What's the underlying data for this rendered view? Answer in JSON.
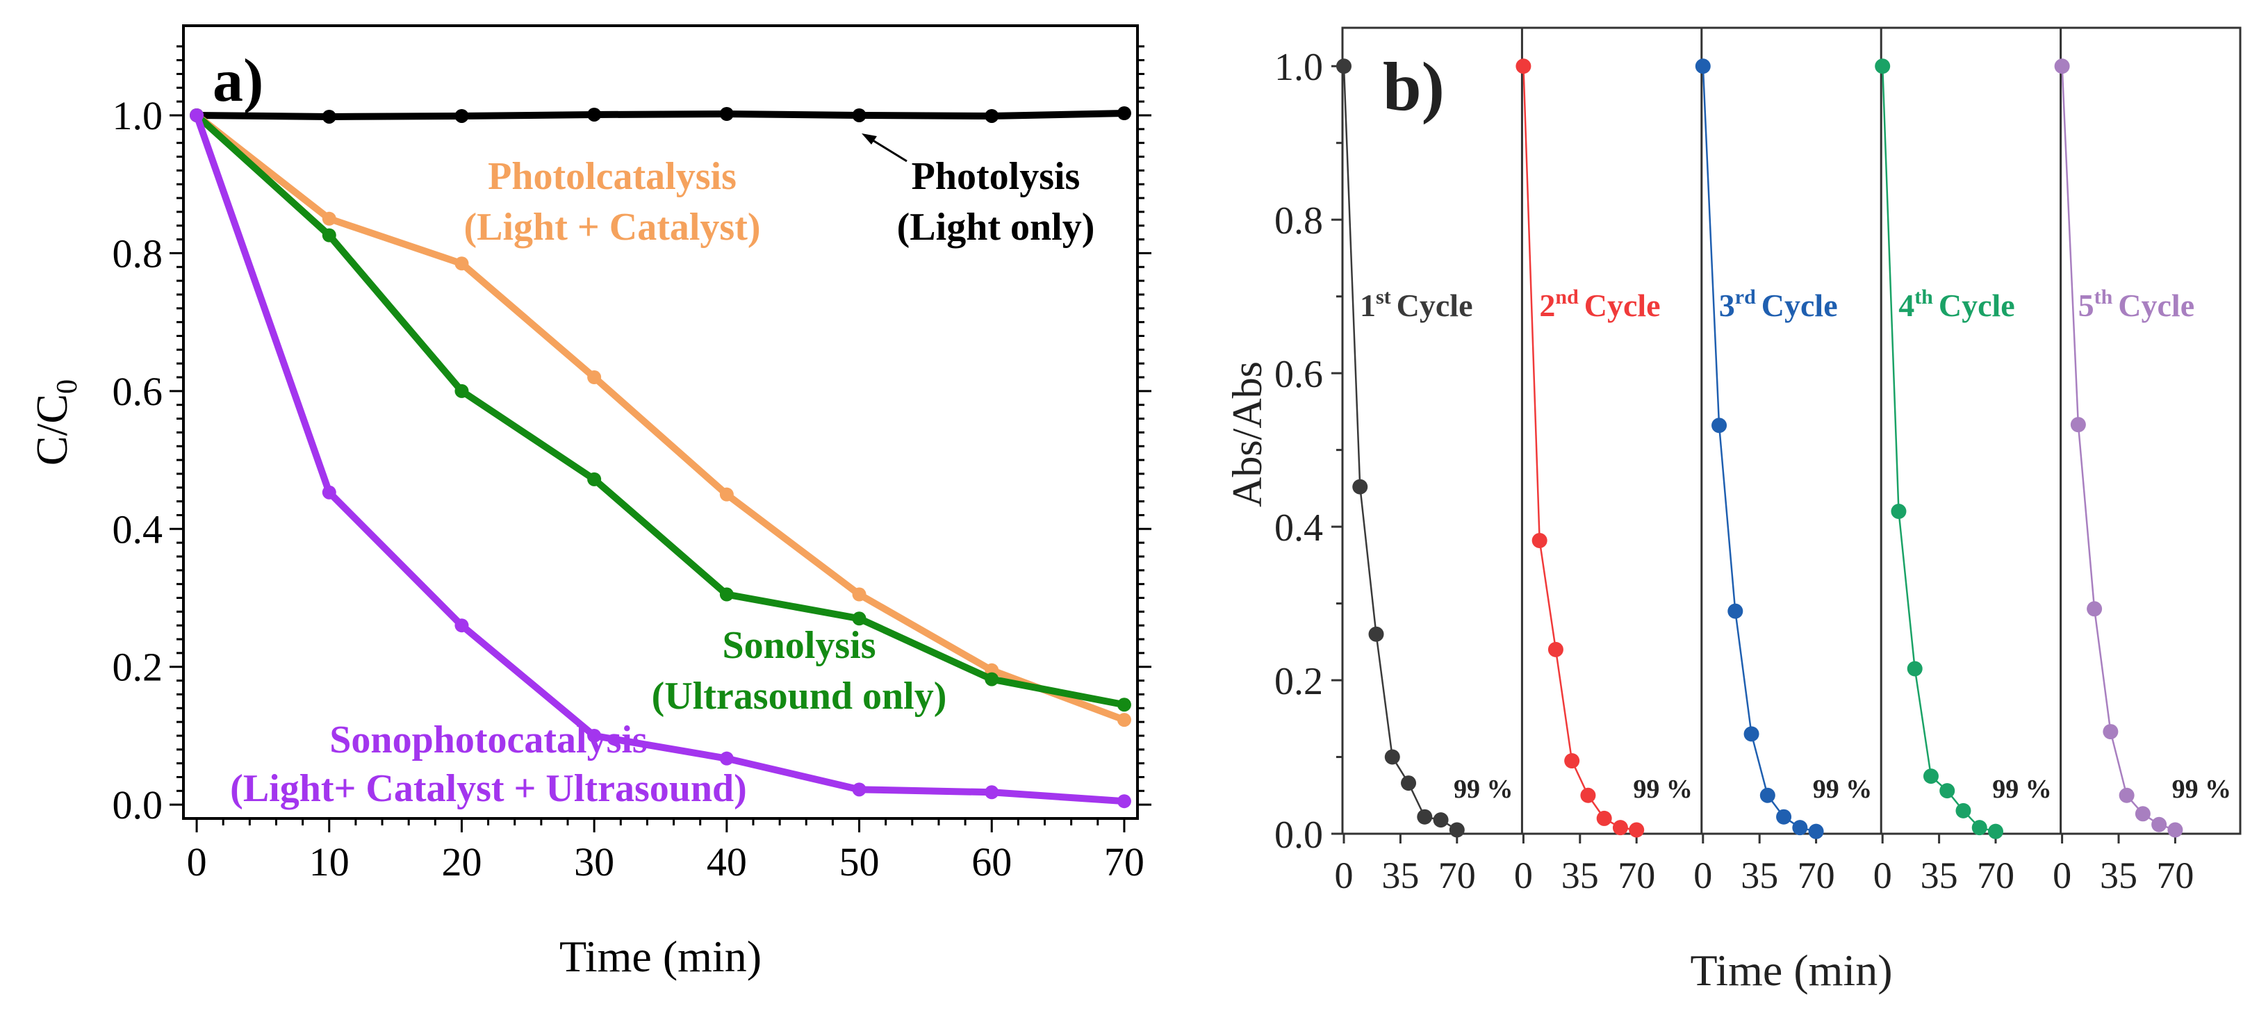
{
  "chart_data": [
    {
      "panel_label": "a)",
      "type": "line",
      "xlabel": "Time (min)",
      "ylabel": "C/C",
      "ylabel_sub": "0",
      "xlim": [
        -1,
        71
      ],
      "ylim": [
        -0.02,
        1.13
      ],
      "xticks": [
        0,
        10,
        20,
        30,
        40,
        50,
        60,
        70
      ],
      "yticks": [
        "0.0",
        "0.2",
        "0.4",
        "0.6",
        "0.8",
        "1.0"
      ],
      "x": [
        0,
        10,
        20,
        30,
        40,
        50,
        60,
        70
      ],
      "series": [
        {
          "name": "Photolysis",
          "label_line1": "Photolysis",
          "label_line2": "(Light only)",
          "color": "#000000",
          "values": [
            1.0,
            0.998,
            0.999,
            1.001,
            1.002,
            1.0,
            0.999,
            1.003
          ]
        },
        {
          "name": "Photolcatalysis",
          "label_line1": "Photolcatalysis",
          "label_line2": "(Light + Catalyst)",
          "color": "#f5a25d",
          "values": [
            1.0,
            0.85,
            0.785,
            0.62,
            0.45,
            0.305,
            0.195,
            0.123
          ]
        },
        {
          "name": "Sonolysis",
          "label_line1": "Sonolysis",
          "label_line2": "(Ultrasound only)",
          "color": "#138a13",
          "values": [
            1.0,
            0.826,
            0.6,
            0.472,
            0.305,
            0.27,
            0.182,
            0.145
          ]
        },
        {
          "name": "Sonophotocatalysis",
          "label_line1": "Sonophotocatalysis",
          "label_line2": "(Light+ Catalyst + Ultrasound)",
          "color": "#a335ee",
          "values": [
            1.0,
            0.453,
            0.26,
            0.1,
            0.067,
            0.022,
            0.018,
            0.005
          ]
        }
      ]
    },
    {
      "panel_label": "b)",
      "type": "line",
      "xlabel": "Time (min)",
      "ylabel": "Abs/Abs",
      "ylim": [
        0,
        1.05
      ],
      "yticks": [
        "0.0",
        "0.2",
        "0.4",
        "0.6",
        "0.8",
        "1.0"
      ],
      "xticks": [
        "0",
        "35",
        "70"
      ],
      "x": [
        0,
        10,
        20,
        30,
        40,
        50,
        60,
        70
      ],
      "cycles": [
        {
          "name": "1st Cycle",
          "num": "1",
          "sup": "st",
          "word": "Cycle",
          "color": "#3a3a3a",
          "values": [
            1.0,
            0.452,
            0.26,
            0.1,
            0.066,
            0.022,
            0.018,
            0.005
          ],
          "annotation": "99 %"
        },
        {
          "name": "2nd Cycle",
          "num": "2",
          "sup": "nd",
          "word": "Cycle",
          "color": "#f03a3a",
          "values": [
            1.0,
            0.382,
            0.24,
            0.095,
            0.05,
            0.02,
            0.008,
            0.005
          ],
          "annotation": "99 %"
        },
        {
          "name": "3rd Cycle",
          "num": "3",
          "sup": "rd",
          "word": "Cycle",
          "color": "#1f5fb0",
          "values": [
            1.0,
            0.532,
            0.29,
            0.13,
            0.05,
            0.022,
            0.008,
            0.003
          ],
          "annotation": "99 %"
        },
        {
          "name": "4th Cycle",
          "num": "4",
          "sup": "th",
          "word": "Cycle",
          "color": "#1aa266",
          "values": [
            1.0,
            0.42,
            0.215,
            0.075,
            0.056,
            0.03,
            0.008,
            0.003
          ],
          "annotation": "99 %"
        },
        {
          "name": "5th Cycle",
          "num": "5",
          "sup": "th",
          "word": "Cycle",
          "color": "#a87fc0",
          "values": [
            1.0,
            0.533,
            0.293,
            0.133,
            0.05,
            0.026,
            0.012,
            0.005
          ],
          "annotation": "99 %"
        }
      ]
    }
  ]
}
